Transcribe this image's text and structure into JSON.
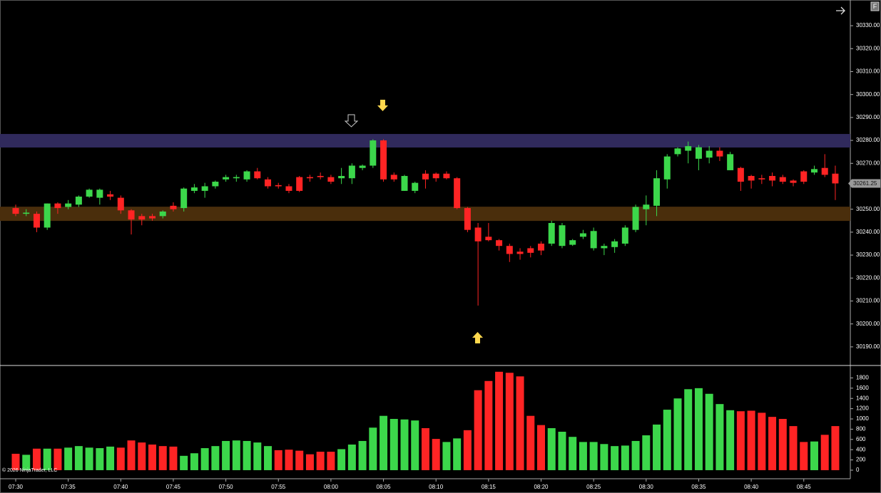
{
  "chart_data": [
    {
      "type": "candlestick",
      "x": [
        "07:30",
        null,
        null,
        null,
        null,
        "07:35",
        null,
        null,
        null,
        null,
        "07:40",
        null,
        null,
        null,
        null,
        "07:45",
        null,
        null,
        null,
        null,
        "07:50",
        null,
        null,
        null,
        null,
        "07:55",
        null,
        null,
        null,
        null,
        "08:00",
        null,
        null,
        null,
        null,
        "08:05",
        null,
        null,
        null,
        null,
        "08:10",
        null,
        null,
        null,
        null,
        "08:15",
        null,
        null,
        null,
        null,
        "08:20",
        null,
        null,
        null,
        null,
        "08:25",
        null,
        null,
        null,
        null,
        "08:30",
        null,
        null,
        null,
        null,
        "08:35",
        null,
        null,
        null,
        null,
        "08:40",
        null,
        null,
        null,
        null,
        "08:45",
        null,
        null,
        null
      ],
      "open": [
        30250.5,
        30248,
        30248,
        30242,
        30252.5,
        30251,
        30252,
        30255.5,
        30255,
        30256.5,
        30255,
        30249.5,
        30247,
        30247,
        30247,
        30251.5,
        30250.5,
        30258,
        30258,
        30260,
        30263,
        30263.5,
        30263,
        30266.5,
        30263,
        30260.5,
        30260,
        30264,
        30264,
        30264.5,
        30264,
        30263.5,
        30263.5,
        30268,
        30269,
        30280,
        30265,
        30258,
        30258,
        30265.5,
        30265.5,
        30265.5,
        30263.5,
        30250.5,
        30242,
        30238,
        30236.5,
        30234,
        30231.5,
        30233,
        30235,
        30235,
        30234,
        30234.5,
        30238,
        30233,
        30233,
        30233.5,
        30235,
        30241,
        30250,
        30251.5,
        30263,
        30274,
        30275.5,
        30272,
        30272.5,
        30275.5,
        30267,
        30268,
        30264.5,
        30263.5,
        30264.5,
        30264,
        30262.5,
        30266.5,
        30266,
        30268,
        30265.5
      ],
      "high": [
        30252,
        30250,
        30249,
        30252.5,
        30253,
        30254,
        30256,
        30259,
        30259,
        30258,
        30256,
        30250,
        30248,
        30248,
        30249.5,
        30253,
        30259.5,
        30261,
        30261.5,
        30262.5,
        30265,
        30265,
        30267,
        30268,
        30264,
        30261.5,
        30261,
        30264.5,
        30265,
        30266,
        30265,
        30268,
        30270,
        30269.5,
        30280.5,
        30280.5,
        30266,
        30265,
        30262,
        30267,
        30266,
        30266.5,
        30264,
        30251,
        30244,
        30244,
        30237,
        30235,
        30233,
        30234,
        30236,
        30245,
        30244,
        30237,
        30241,
        30242,
        30235,
        30237,
        30243,
        30252,
        30256,
        30267,
        30274,
        30277,
        30279.5,
        30278,
        30277.5,
        30277,
        30275,
        30268.5,
        30265,
        30265,
        30266,
        30265,
        30263,
        30267,
        30269,
        30274,
        30269
      ],
      "low": [
        30247,
        30247,
        30240,
        30241,
        30248,
        30250,
        30251,
        30255,
        30252,
        30254,
        30248,
        30239,
        30243,
        30245,
        30246,
        30249,
        30249,
        30257,
        30255,
        30259,
        30262,
        30262,
        30262,
        30263,
        30259,
        30259,
        30257,
        30257.5,
        30262,
        30263,
        30261,
        30261,
        30261,
        30267,
        30268,
        30262,
        30262,
        30258,
        30257,
        30259,
        30262,
        30263,
        30250,
        30240,
        30208,
        30236,
        30232,
        30227,
        30228,
        30229,
        30230,
        30234,
        30233,
        30234,
        30237,
        30232,
        30230,
        30231,
        30234,
        30240,
        30243,
        30247,
        30259,
        30273,
        30270,
        30267,
        30270,
        30271,
        30267,
        30258,
        30259,
        30261,
        30260,
        30261,
        30260,
        30261,
        30265,
        30264,
        30254
      ],
      "close": [
        30248,
        30248.5,
        30242,
        30252.5,
        30250.5,
        30252.5,
        30255.5,
        30258.5,
        30258.5,
        30255.5,
        30249.5,
        30245.5,
        30245.5,
        30246,
        30249,
        30250,
        30259,
        30259.5,
        30260,
        30262,
        30264,
        30264,
        30266.5,
        30263.5,
        30260,
        30260,
        30258,
        30258,
        30263.5,
        30264,
        30262,
        30264.5,
        30269,
        30269,
        30280,
        30263,
        30263,
        30264.5,
        30261.5,
        30263,
        30263.5,
        30263.5,
        30250.5,
        30241,
        30236,
        30236.5,
        30234,
        30230.5,
        30230.5,
        30231,
        30232,
        30244,
        30243,
        30236.5,
        30239.5,
        30240.5,
        30234,
        30236,
        30242,
        30251,
        30252,
        30263.5,
        30273,
        30276.5,
        30277.5,
        30277,
        30275.5,
        30273,
        30274,
        30262,
        30262.5,
        30263,
        30262.5,
        30262,
        30261.5,
        30262,
        30267.5,
        30265,
        30261.25
      ],
      "up_color": "#3cd74b",
      "down_color": "#ff2424",
      "ylim": [
        30182.2,
        30341.2
      ],
      "yticks": [
        {
          "value": 30190,
          "label": "30190.00"
        },
        {
          "value": 30200,
          "label": "30200.00"
        },
        {
          "value": 30210,
          "label": "30210.00"
        },
        {
          "value": 30220,
          "label": "30220.00"
        },
        {
          "value": 30230,
          "label": "30230.00"
        },
        {
          "value": 30240,
          "label": "30240.00"
        },
        {
          "value": 30250,
          "label": "30250.00"
        },
        {
          "value": 30260,
          "label": "30260.00"
        },
        {
          "value": 30270,
          "label": "30270.00"
        },
        {
          "value": 30280,
          "label": "30280.00"
        },
        {
          "value": 30290,
          "label": "30290.00"
        },
        {
          "value": 30300,
          "label": "30300.00"
        },
        {
          "value": 30310,
          "label": "30310.00"
        },
        {
          "value": 30320,
          "label": "30320.00"
        },
        {
          "value": 30330,
          "label": "30330.00"
        }
      ],
      "zones": [
        {
          "from": 30276.9,
          "to": 30282.8,
          "color": "#302a5c"
        },
        {
          "from": 30244.9,
          "to": 30251.1,
          "color": "#4a2e0c"
        }
      ],
      "last_price": 30261.25,
      "annotations": [
        "© 2026 NinjaTrader, LLC"
      ]
    },
    {
      "type": "bar",
      "values": [
        320,
        300,
        420,
        420,
        420,
        440,
        470,
        440,
        430,
        460,
        440,
        580,
        540,
        500,
        470,
        460,
        280,
        330,
        430,
        470,
        570,
        580,
        570,
        540,
        470,
        390,
        400,
        380,
        310,
        360,
        360,
        410,
        500,
        570,
        830,
        1060,
        1000,
        990,
        970,
        820,
        610,
        550,
        620,
        780,
        1560,
        1740,
        1920,
        1900,
        1830,
        1060,
        880,
        820,
        750,
        650,
        550,
        550,
        510,
        470,
        480,
        570,
        680,
        890,
        1180,
        1400,
        1580,
        1600,
        1490,
        1290,
        1170,
        1150,
        1160,
        1120,
        1040,
        1000,
        860,
        550,
        560,
        690,
        860
      ],
      "colors": [
        "#ff2424",
        "#3cd74b",
        "#ff2424",
        "#3cd74b",
        "#ff2424",
        "#3cd74b",
        "#3cd74b",
        "#3cd74b",
        "#3cd74b",
        "#3cd74b",
        "#ff2424",
        "#ff2424",
        "#ff2424",
        "#ff2424",
        "#ff2424",
        "#ff2424",
        "#3cd74b",
        "#3cd74b",
        "#3cd74b",
        "#3cd74b",
        "#3cd74b",
        "#3cd74b",
        "#3cd74b",
        "#3cd74b",
        "#3cd74b",
        "#ff2424",
        "#ff2424",
        "#ff2424",
        "#ff2424",
        "#ff2424",
        "#ff2424",
        "#3cd74b",
        "#3cd74b",
        "#3cd74b",
        "#3cd74b",
        "#3cd74b",
        "#3cd74b",
        "#3cd74b",
        "#3cd74b",
        "#ff2424",
        "#ff2424",
        "#3cd74b",
        "#3cd74b",
        "#ff2424",
        "#ff2424",
        "#ff2424",
        "#ff2424",
        "#ff2424",
        "#ff2424",
        "#ff2424",
        "#ff2424",
        "#3cd74b",
        "#3cd74b",
        "#3cd74b",
        "#3cd74b",
        "#3cd74b",
        "#3cd74b",
        "#3cd74b",
        "#3cd74b",
        "#3cd74b",
        "#3cd74b",
        "#3cd74b",
        "#3cd74b",
        "#3cd74b",
        "#3cd74b",
        "#3cd74b",
        "#3cd74b",
        "#3cd74b",
        "#3cd74b",
        "#ff2424",
        "#ff2424",
        "#ff2424",
        "#ff2424",
        "#ff2424",
        "#ff2424",
        "#ff2424",
        "#3cd74b",
        "#ff2424",
        "#ff2424"
      ],
      "ylim": [
        -70,
        2015
      ],
      "yticks": [
        0,
        200,
        400,
        600,
        800,
        1000,
        1200,
        1400,
        1600,
        1800
      ]
    }
  ],
  "toolbar": {
    "button": "F"
  }
}
